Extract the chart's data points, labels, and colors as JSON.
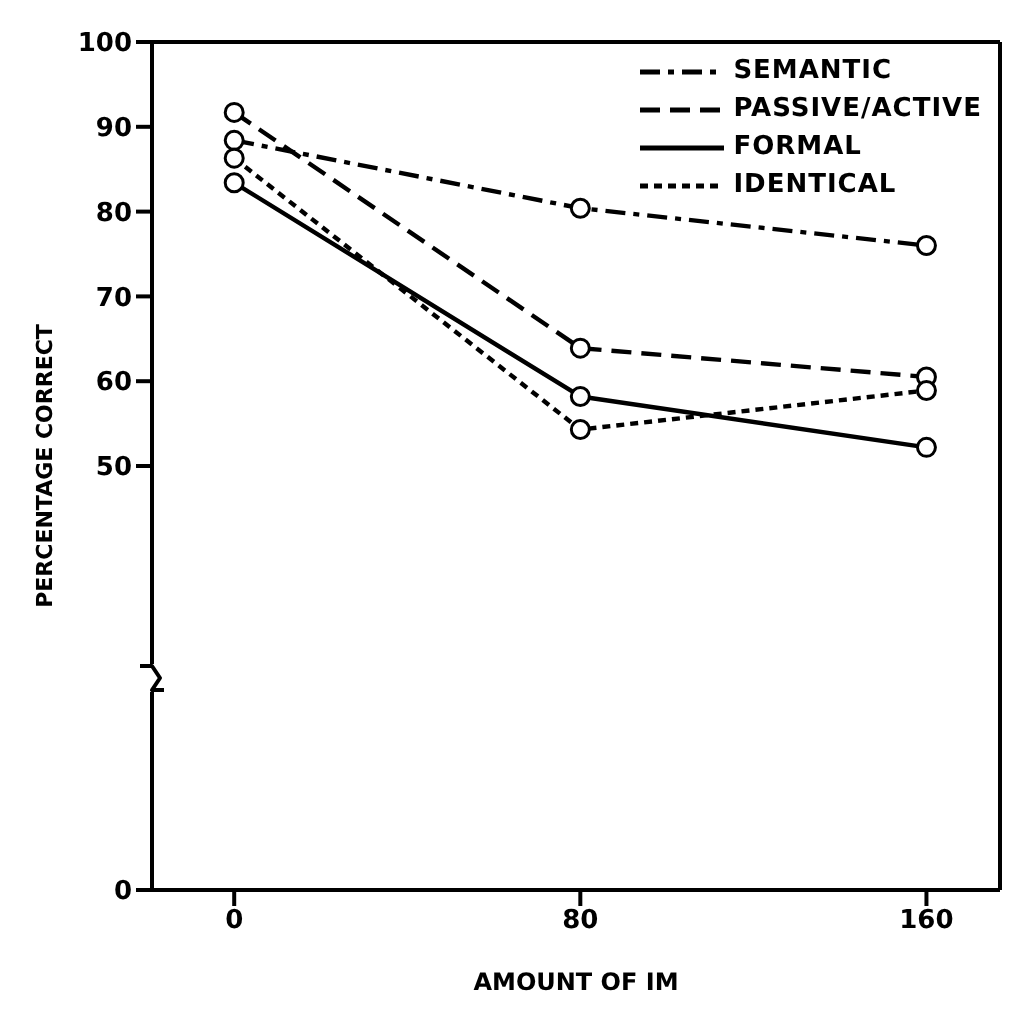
{
  "chart_data": {
    "type": "line",
    "xlabel": "AMOUNT OF IM",
    "ylabel": "PERCENTAGE CORRECT",
    "x": [
      0,
      80,
      160
    ],
    "series": [
      {
        "name": "SEMANTIC",
        "color": "#000000",
        "line_style": "dashdot",
        "values": [
          88.4,
          80.4,
          76.0
        ]
      },
      {
        "name": "PASSIVE/ACTIVE",
        "color": "#000000",
        "line_style": "dashed",
        "values": [
          91.7,
          63.9,
          60.5
        ]
      },
      {
        "name": "FORMAL",
        "color": "#000000",
        "line_style": "solid",
        "values": [
          83.4,
          58.2,
          52.2
        ]
      },
      {
        "name": "IDENTICAL",
        "color": "#000000",
        "line_style": "dotted",
        "values": [
          86.3,
          54.3,
          58.9
        ]
      }
    ],
    "marker": "circle",
    "xlim": [
      -19,
      177
    ],
    "xticks": [
      0,
      80,
      160
    ],
    "ylim": [
      0,
      100
    ],
    "yticks": [
      0,
      50,
      60,
      70,
      80,
      90,
      100
    ],
    "legend": "top right"
  }
}
